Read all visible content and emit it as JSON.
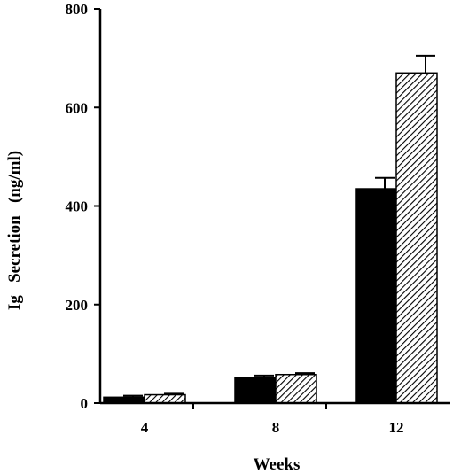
{
  "chart_data": {
    "type": "bar",
    "categories": [
      "4",
      "8",
      "12"
    ],
    "series": [
      {
        "values": [
          12,
          52,
          435
        ],
        "errors": [
          3,
          4,
          22
        ],
        "fill": "solid"
      },
      {
        "values": [
          17,
          58,
          670
        ],
        "errors": [
          2,
          3,
          35
        ],
        "fill": "hatched"
      }
    ],
    "ylim": [
      0,
      800
    ],
    "yticks": [
      0,
      200,
      400,
      600,
      800
    ],
    "xlabel": "Weeks",
    "ylabel": "Ig   Secretion   (ng/ml)",
    "grid": false
  }
}
